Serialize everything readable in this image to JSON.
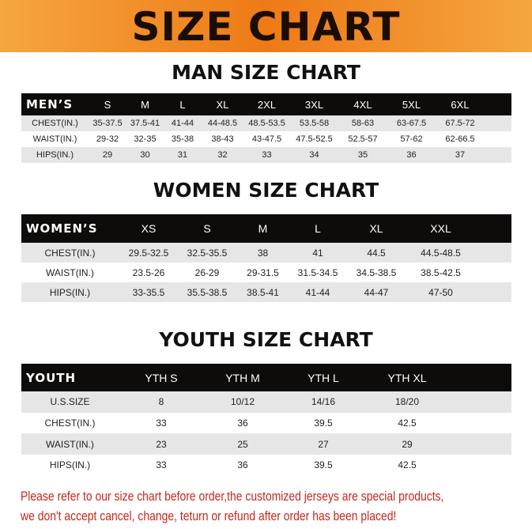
{
  "banner": "SIZE CHART",
  "men": {
    "title": "MAN SIZE CHART",
    "header": "MEN’S",
    "sizes": [
      "S",
      "M",
      "L",
      "XL",
      "2XL",
      "3XL",
      "4XL",
      "5XL",
      "6XL"
    ],
    "rows": [
      {
        "label": "CHEST(IN.)",
        "values": [
          "35-37.5",
          "37.5-41",
          "41-44",
          "44-48.5",
          "48.5-53.5",
          "53.5-58",
          "58-63",
          "63-67.5",
          "67.5-72"
        ]
      },
      {
        "label": "WAIST(IN.)",
        "values": [
          "29-32",
          "32-35",
          "35-38",
          "38-43",
          "43-47.5",
          "47.5-52.5",
          "52.5-57",
          "57-62",
          "62-66.5"
        ]
      },
      {
        "label": "HIPS(IN.)",
        "values": [
          "29",
          "30",
          "31",
          "32",
          "33",
          "34",
          "35",
          "36",
          "37"
        ]
      }
    ]
  },
  "women": {
    "title": "WOMEN SIZE CHART",
    "header": "WOMEN’S",
    "sizes": [
      "XS",
      "S",
      "M",
      "L",
      "XL",
      "XXL"
    ],
    "rows": [
      {
        "label": "CHEST(IN.)",
        "values": [
          "29.5-32.5",
          "32.5-35.5",
          "38",
          "41",
          "44.5",
          "44.5-48.5"
        ]
      },
      {
        "label": "WAIST(IN.)",
        "values": [
          "23.5-26",
          "26-29",
          "29-31.5",
          "31.5-34.5",
          "34.5-38.5",
          "38.5-42.5"
        ]
      },
      {
        "label": "HIPS(IN.)",
        "values": [
          "33-35.5",
          "35.5-38.5",
          "38.5-41",
          "41-44",
          "44-47",
          "47-50"
        ]
      }
    ]
  },
  "youth": {
    "title": "YOUTH SIZE CHART",
    "header": "YOUTH",
    "sizes": [
      "YTH S",
      "YTH M",
      "YTH L",
      "YTH XL"
    ],
    "rows": [
      {
        "label": "U.S.SIZE",
        "values": [
          "8",
          "10/12",
          "14/16",
          "18/20"
        ]
      },
      {
        "label": "CHEST(IN.)",
        "values": [
          "33",
          "36",
          "39.5",
          "42.5"
        ]
      },
      {
        "label": "WAIST(IN.)",
        "values": [
          "23",
          "25",
          "27",
          "29"
        ]
      },
      {
        "label": "HIPS(IN.)",
        "values": [
          "33",
          "36",
          "39.5",
          "42.5"
        ]
      }
    ]
  },
  "note": {
    "line1": "Please refer to our size chart before order,the customized jerseys are special products,",
    "line2": "we don't accept cancel, change, teturn or refund after order has been placed!"
  }
}
